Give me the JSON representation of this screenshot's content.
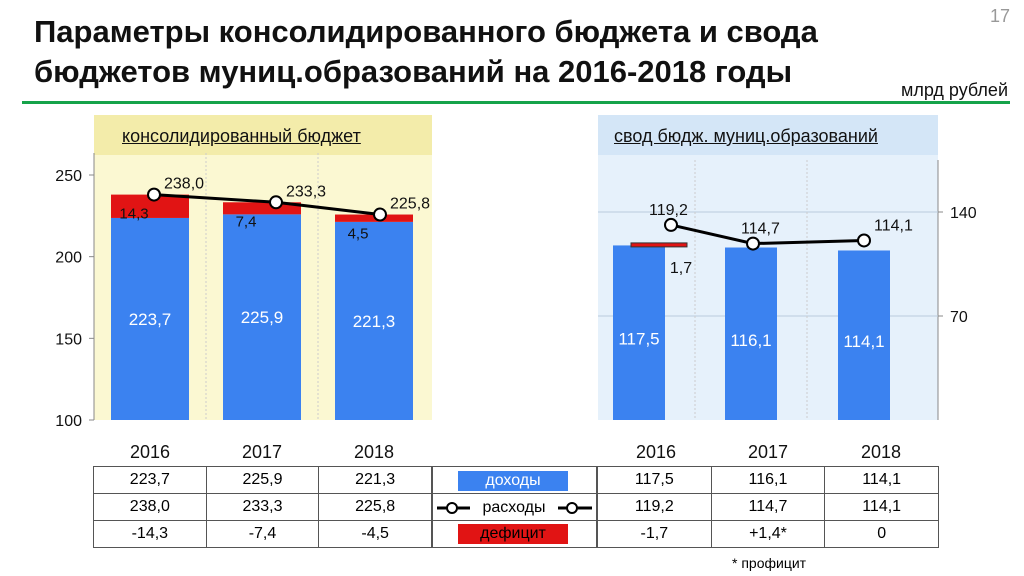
{
  "page": {
    "title": "Параметры консолидированного бюджета и свода бюджетов муниц.образований на 2016-2018 годы",
    "page_number": "17",
    "units": "млрд рублей",
    "footnote": "* профицит",
    "colors": {
      "income": "#3b82f0",
      "deficit": "#e11414",
      "left_bg": "#fbf8d2",
      "right_bg": "#e6f1fb",
      "accent_line": "#16a34a"
    }
  },
  "chart_data": [
    {
      "type": "bar",
      "title": "консолидированный бюджет",
      "categories": [
        "2016",
        "2017",
        "2018"
      ],
      "ylim": [
        100,
        250
      ],
      "yticks": [
        "100",
        "150",
        "200",
        "250"
      ],
      "series": [
        {
          "name": "доходы",
          "values": [
            223.7,
            225.9,
            221.3
          ],
          "labels": [
            "223,7",
            "225,9",
            "221,3"
          ]
        },
        {
          "name": "дефицит",
          "values": [
            14.3,
            7.4,
            4.5
          ],
          "labels": [
            "14,3",
            "7,4",
            "4,5"
          ]
        },
        {
          "name": "расходы",
          "values": [
            238.0,
            233.3,
            225.8
          ],
          "labels": [
            "238,0",
            "233,3",
            "225,8"
          ]
        }
      ]
    },
    {
      "type": "bar",
      "title": "свод бюдж. муниц.образований",
      "categories": [
        "2016",
        "2017",
        "2018"
      ],
      "ylim": [
        0,
        175
      ],
      "yticks": [
        "70",
        "140"
      ],
      "series": [
        {
          "name": "доходы",
          "values": [
            117.5,
            116.1,
            114.1
          ],
          "labels": [
            "117,5",
            "116,1",
            "114,1"
          ]
        },
        {
          "name": "дефицит",
          "values": [
            1.7,
            0,
            0
          ],
          "labels": [
            "1,7",
            "",
            ""
          ]
        },
        {
          "name": "расходы",
          "values": [
            119.2,
            114.7,
            114.1
          ],
          "labels": [
            "119,2",
            "114,7",
            "114,1"
          ]
        }
      ]
    }
  ],
  "table": {
    "legend": {
      "income": "доходы",
      "expenses": "расходы",
      "deficit": "дефицит"
    },
    "left": [
      [
        "223,7",
        "225,9",
        "221,3"
      ],
      [
        "238,0",
        "233,3",
        "225,8"
      ],
      [
        "-14,3",
        "-7,4",
        "-4,5"
      ]
    ],
    "right": [
      [
        "117,5",
        "116,1",
        "114,1"
      ],
      [
        "119,2",
        "114,7",
        "114,1"
      ],
      [
        "-1,7",
        "+1,4*",
        "0"
      ]
    ]
  }
}
